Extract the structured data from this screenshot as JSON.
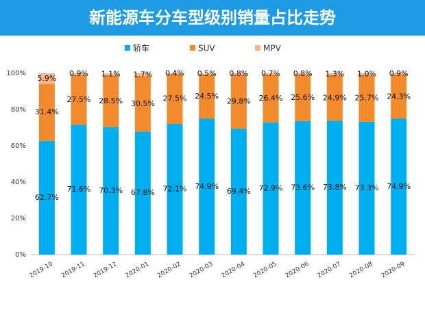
{
  "chart_data": {
    "type": "stacked_bar_100",
    "title": "新能源车分车型级别销量占比走势",
    "categories": [
      "2019-10",
      "2019-11",
      "2019-12",
      "2020-01",
      "2020-02",
      "2020-03",
      "2020-04",
      "2020-05",
      "2020-06",
      "2020-07",
      "2020-08",
      "2020-09"
    ],
    "series": [
      {
        "name": "轿车",
        "color": "#00AEEF",
        "values": [
          62.7,
          71.6,
          70.3,
          67.8,
          72.1,
          74.9,
          69.4,
          72.9,
          73.6,
          73.8,
          73.3,
          74.9
        ],
        "value_labels": [
          "62.7%",
          "71.6%",
          "70.3%",
          "67.8%",
          "72.1%",
          "74.9%",
          "69.4%",
          "72.9%",
          "73.6%",
          "73.8%",
          "73.3%",
          "74.9%"
        ]
      },
      {
        "name": "SUV",
        "color": "#F28A2E",
        "values": [
          31.4,
          27.5,
          28.5,
          30.5,
          27.5,
          24.5,
          29.8,
          26.4,
          25.6,
          24.9,
          25.7,
          24.3
        ],
        "value_labels": [
          "31.4%",
          "27.5%",
          "28.5%",
          "30.5%",
          "27.5%",
          "24.5%",
          "29.8%",
          "26.4%",
          "25.6%",
          "24.9%",
          "25.7%",
          "24.3%"
        ]
      },
      {
        "name": "MPV",
        "color": "#F6B889",
        "values": [
          5.9,
          0.9,
          1.1,
          1.7,
          0.4,
          0.5,
          0.8,
          0.7,
          0.8,
          1.3,
          1.0,
          0.9
        ],
        "value_labels": [
          "5.9%",
          "0.9%",
          "1.1%",
          "1.7%",
          "0.4%",
          "0.5%",
          "0.8%",
          "0.7%",
          "0.8%",
          "1.3%",
          "1.0%",
          "0.9%"
        ]
      }
    ],
    "ylim": [
      0,
      100
    ],
    "yticks": [
      {
        "value": 0,
        "label": "0%"
      },
      {
        "value": 20,
        "label": "20%"
      },
      {
        "value": 40,
        "label": "40%"
      },
      {
        "value": 60,
        "label": "60%"
      },
      {
        "value": 80,
        "label": "80%"
      },
      {
        "value": 100,
        "label": "100%"
      }
    ],
    "legend": "top"
  }
}
